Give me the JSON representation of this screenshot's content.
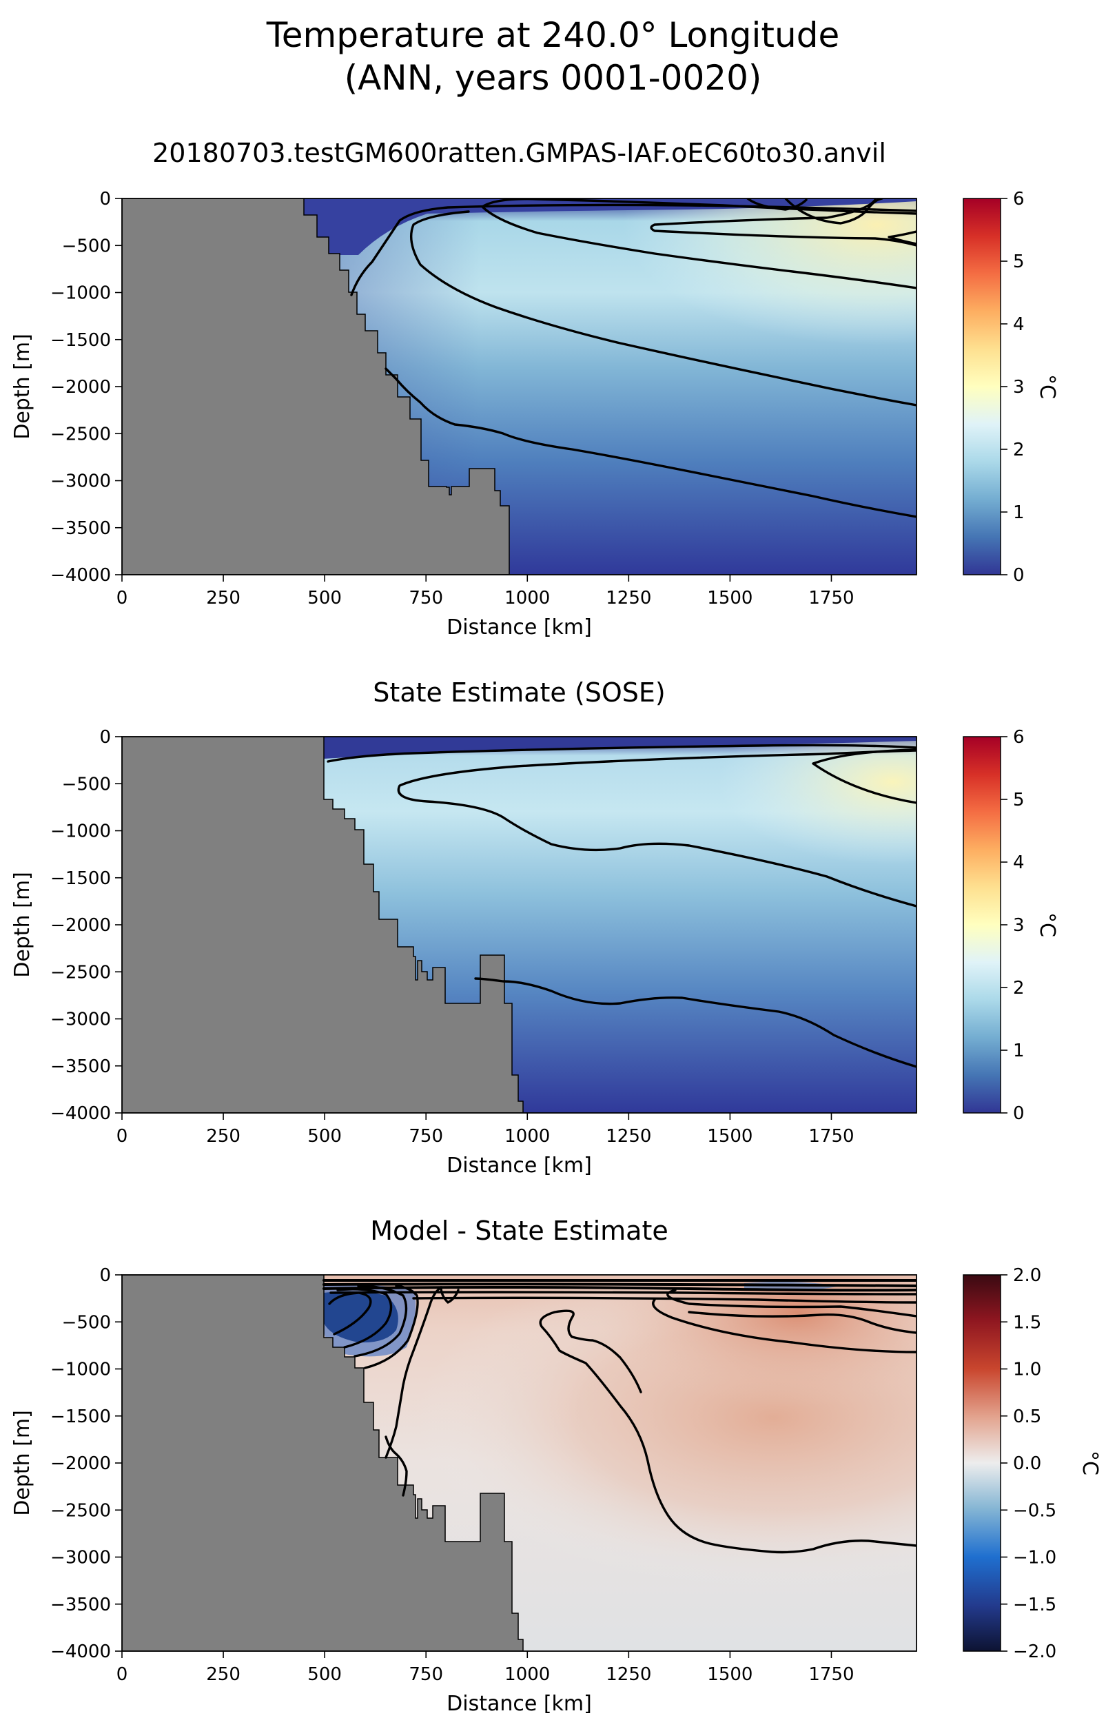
{
  "figure": {
    "title_line1": "Temperature at 240.0° Longitude",
    "title_line2": "(ANN, years 0001-0020)"
  },
  "chart_data": [
    {
      "type": "heatmap",
      "title": "20180703.testGM600ratten.GMPAS-IAF.oEC60to30.anvil",
      "xlabel": "Distance [km]",
      "ylabel": "Depth [m]",
      "xlim": [
        0,
        1960
      ],
      "ylim": [
        -4000,
        0
      ],
      "xticks": [
        "0",
        "250",
        "500",
        "750",
        "1000",
        "1250",
        "1500",
        "1750"
      ],
      "yticks": [
        "0",
        "−500",
        "−1000",
        "−1500",
        "−2000",
        "−2500",
        "−3000",
        "−3500",
        "−4000"
      ],
      "colorbar": {
        "label": "°C",
        "colormap": "RdYlBu_r",
        "range": [
          0,
          6
        ],
        "ticks": [
          "0",
          "1",
          "2",
          "3",
          "4",
          "5",
          "6"
        ]
      },
      "contour_levels": [
        0,
        1,
        2,
        3
      ],
      "land_color": "#808080",
      "grid": false
    },
    {
      "type": "heatmap",
      "title": "State Estimate (SOSE)",
      "xlabel": "Distance [km]",
      "ylabel": "Depth [m]",
      "xlim": [
        0,
        1960
      ],
      "ylim": [
        -4000,
        0
      ],
      "xticks": [
        "0",
        "250",
        "500",
        "750",
        "1000",
        "1250",
        "1500",
        "1750"
      ],
      "yticks": [
        "0",
        "−500",
        "−1000",
        "−1500",
        "−2000",
        "−2500",
        "−3000",
        "−3500",
        "−4000"
      ],
      "colorbar": {
        "label": "°C",
        "colormap": "RdYlBu_r",
        "range": [
          0,
          6
        ],
        "ticks": [
          "0",
          "1",
          "2",
          "3",
          "4",
          "5",
          "6"
        ]
      },
      "contour_levels": [
        0,
        1,
        2,
        3
      ],
      "land_color": "#808080",
      "grid": false
    },
    {
      "type": "heatmap",
      "title": "Model - State Estimate",
      "xlabel": "Distance [km]",
      "ylabel": "Depth [m]",
      "xlim": [
        0,
        1960
      ],
      "ylim": [
        -4000,
        0
      ],
      "xticks": [
        "0",
        "250",
        "500",
        "750",
        "1000",
        "1250",
        "1500",
        "1750"
      ],
      "yticks": [
        "0",
        "−500",
        "−1000",
        "−1500",
        "−2000",
        "−2500",
        "−3000",
        "−3500",
        "−4000"
      ],
      "colorbar": {
        "label": "°C",
        "colormap": "RdBu_r",
        "range": [
          -2,
          2
        ],
        "ticks": [
          "−2.0",
          "−1.5",
          "−1.0",
          "−0.5",
          "0.0",
          "0.5",
          "1.0",
          "1.5",
          "2.0"
        ]
      },
      "contour_levels": [
        -1.5,
        -1,
        -0.5,
        0,
        0.5
      ],
      "land_color": "#808080",
      "grid": false
    }
  ]
}
